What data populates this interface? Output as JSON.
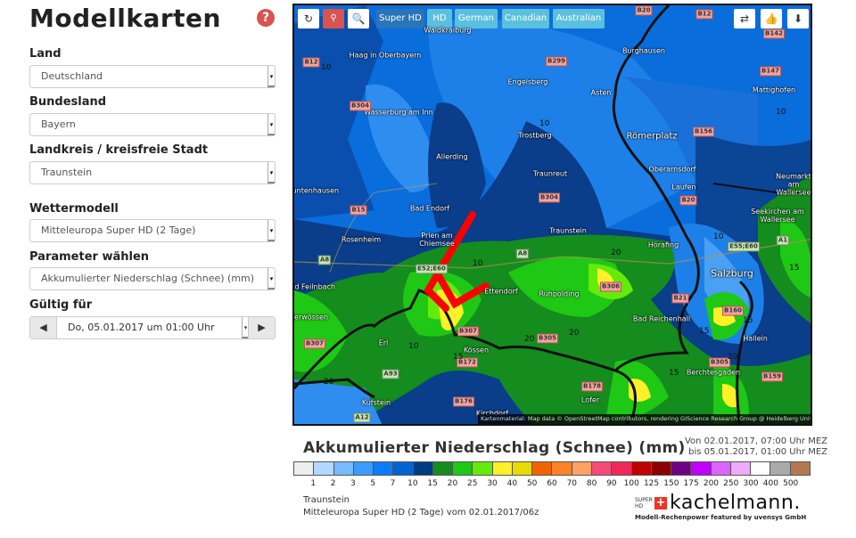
{
  "page": {
    "title": "Modellkarten",
    "help_icon": "question-circle-icon"
  },
  "form": {
    "land": {
      "label": "Land",
      "value": "Deutschland"
    },
    "bundesland": {
      "label": "Bundesland",
      "value": "Bayern"
    },
    "landkreis": {
      "label": "Landkreis / kreisfreie Stadt",
      "value": "Traunstein"
    },
    "wettermodell": {
      "label": "Wettermodell",
      "value": "Mitteleuropa Super HD (2 Tage)"
    },
    "parameter": {
      "label": "Parameter wählen",
      "value": "Akkumulierter Niederschlag (Schnee) (mm)"
    },
    "gueltig": {
      "label": "Gültig für",
      "value": "Do, 05.01.2017 um 01:00 Uhr",
      "prev": "◀",
      "next": "▶"
    }
  },
  "toolbar": {
    "refresh": "↻",
    "location": "⚲",
    "zoom": "🔍",
    "models": [
      "Super HD",
      "HD",
      "German",
      "Canadian",
      "Australian"
    ],
    "active_model": "Super HD",
    "share": "⇄",
    "like": "👍",
    "download": "⬇"
  },
  "map": {
    "places": [
      "Waldkraiburg",
      "Haag in Oberbayern",
      "Wasserburg am Inn",
      "Engelsberg",
      "Trostberg",
      "Allerding",
      "Traunreut",
      "Bad Endorf",
      "Rosenheim",
      "Prien am Chiemsee",
      "Traunstein",
      "Burghausen",
      "Asten",
      "Römerplatz",
      "Oberarnsdorf",
      "Laufen",
      "Mattighofen",
      "Neumarkt am Wallersee",
      "Seekirchen am Wallersee",
      "Hörafing",
      "Salzburg",
      "Ruhpolding",
      "Bad Reichenhall",
      "Hallein",
      "Berchtesgaden",
      "Lofer",
      "Kirchdorf",
      "Kufstein",
      "Erl",
      "Kössen",
      "Bad Feilnbach",
      "Ettendorf",
      "Tuntenhausen",
      "Unterwössen"
    ],
    "roads": [
      "B12",
      "B304",
      "B299",
      "B20",
      "B12",
      "B142",
      "B147",
      "B156",
      "B20",
      "B15",
      "B304",
      "A8",
      "E52;E60",
      "A8",
      "A1",
      "E55;E60",
      "B306",
      "B21",
      "B160",
      "B307",
      "B307",
      "B305",
      "B172",
      "A93",
      "B176",
      "A12",
      "B178",
      "B305",
      "B159"
    ],
    "contours": [
      "10",
      "10",
      "10",
      "10",
      "20",
      "20",
      "20",
      "15",
      "15",
      "15",
      "20",
      "15",
      "10",
      "15",
      "20",
      "10"
    ],
    "attribution": "Kartenmaterial: Map data © OpenStreetMap contributors, rendering GIScience Research Group @ Heidelberg University"
  },
  "legend": {
    "title": "Akkumulierter Niederschlag (Schnee) (mm)",
    "from": "Von 02.01.2017, 07:00 Uhr MEZ",
    "to": "bis 05.01.2017, 01:00 Uhr MEZ",
    "colors": [
      "#eeeeee",
      "#b4d7ff",
      "#78b9ff",
      "#3c9bff",
      "#0a7dff",
      "#0064d2",
      "#003c82",
      "#148c1e",
      "#1ec814",
      "#64eb0a",
      "#fff028",
      "#e6dc00",
      "#f06400",
      "#ff8228",
      "#ffa064",
      "#f54b78",
      "#f0285a",
      "#be0000",
      "#8c0000",
      "#6e0082",
      "#be00ff",
      "#dc64ff",
      "#f0aaff",
      "#ffffff",
      "#aaaaaa",
      "#b47850"
    ],
    "ticks": [
      "1",
      "2",
      "3",
      "5",
      "7",
      "10",
      "15",
      "20",
      "25",
      "30",
      "40",
      "50",
      "60",
      "70",
      "80",
      "90",
      "100",
      "125",
      "150",
      "175",
      "200",
      "250",
      "300",
      "400",
      "500"
    ]
  },
  "footer": {
    "location": "Traunstein",
    "model": "Mitteleuropa Super HD (2 Tage) vom 02.01.2017/06z"
  },
  "logo": {
    "brand": "kachelmann.",
    "tagline": "Modell-Rechenpower featured by uvensys GmbH",
    "badge": "SUPER HD"
  }
}
